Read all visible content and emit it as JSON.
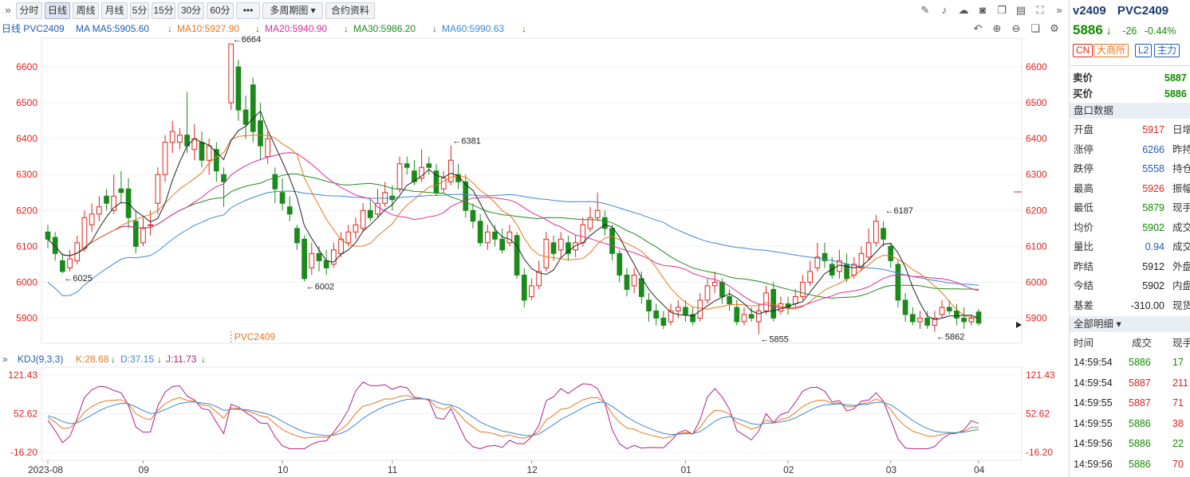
{
  "toolbar": {
    "periods": [
      "分时",
      "日线",
      "周线",
      "月线",
      "5分",
      "15分",
      "30分",
      "60分",
      "•••",
      "多周期图 ▾",
      "合约资料"
    ],
    "active_period": "日线"
  },
  "ma": {
    "label": "日线 PVC2409",
    "ma5": "MA MA5:5905.60",
    "ma10": "MA10:5927.90",
    "ma20": "MA20:5940.90",
    "ma30": "MA30:5986.20",
    "ma60": "MA60:5990.63",
    "colors": {
      "ma5": "#222222",
      "ma10": "#e8761d",
      "ma20": "#e02aa2",
      "ma30": "#1f8a1f",
      "ma60": "#3a87d8"
    }
  },
  "price_axis": {
    "ticks": [
      "6600",
      "6500",
      "6400",
      "6300",
      "6200",
      "6100",
      "6000",
      "5900"
    ]
  },
  "annotations": {
    "high": "6664",
    "p6381": "6381",
    "p6187": "6187",
    "low1": "6025",
    "low2": "6002",
    "low3": "5855",
    "low4": "5862",
    "contract": "PVC2409"
  },
  "kdj": {
    "label": "KDJ(9,3,3)",
    "k": "K:28.68",
    "d": "D:37.15",
    "j": "J:11.73",
    "ticks": [
      "121.43",
      "52.62",
      "-16.20"
    ]
  },
  "x_axis": [
    "2023-08",
    "09",
    "10",
    "11",
    "12",
    "01",
    "02",
    "03",
    "04"
  ],
  "panel": {
    "code": "v2409",
    "name": "PVC2409",
    "price": "5886",
    "change": "-26",
    "change_pct": "-0.44%",
    "tags": [
      "CN",
      "大商所",
      "L2",
      "主力"
    ],
    "ask_label": "卖价",
    "ask": "5887",
    "bid_label": "买价",
    "bid": "5886",
    "stats_title": "盘口数据",
    "stats": [
      {
        "label": "开盘",
        "value": "5917",
        "label2": "日增"
      },
      {
        "label": "涨停",
        "value": "6266",
        "label2": "昨持"
      },
      {
        "label": "跌停",
        "value": "5558",
        "label2": "持仓"
      },
      {
        "label": "最高",
        "value": "5926",
        "label2": "振幅"
      },
      {
        "label": "最低",
        "value": "5879",
        "label2": "现手"
      },
      {
        "label": "均价",
        "value": "5902",
        "label2": "成交"
      },
      {
        "label": "量比",
        "value": "0.94",
        "label2": "成交"
      },
      {
        "label": "昨结",
        "value": "5912",
        "label2": "外盘"
      },
      {
        "label": "今结",
        "value": "5902",
        "label2": "内盘"
      },
      {
        "label": "基差",
        "value": "-310.00",
        "label2": "现货"
      }
    ],
    "ticks_title": "全部明细 ▾",
    "ticks_headers": [
      "时间",
      "成交",
      "现手"
    ],
    "ticks": [
      {
        "time": "14:59:54",
        "price": "5886",
        "vol": "17"
      },
      {
        "time": "14:59:54",
        "price": "5887",
        "vol": "211"
      },
      {
        "time": "14:59:55",
        "price": "5887",
        "vol": "71"
      },
      {
        "time": "14:59:55",
        "price": "5886",
        "vol": "38"
      },
      {
        "time": "14:59:56",
        "price": "5886",
        "vol": "22"
      },
      {
        "time": "14:59:56",
        "price": "5886",
        "vol": "70"
      }
    ]
  },
  "chart_data": {
    "type": "candlestick",
    "title": "PVC2409",
    "price_range": [
      5830,
      6680
    ],
    "candles": [
      [
        6140,
        6120,
        6160,
        6095
      ],
      [
        6125,
        6080,
        6140,
        6060
      ],
      [
        6060,
        6030,
        6080,
        6025
      ],
      [
        6040,
        6065,
        6090,
        6030
      ],
      [
        6060,
        6110,
        6130,
        6050
      ],
      [
        6095,
        6180,
        6200,
        6085
      ],
      [
        6160,
        6190,
        6220,
        6140
      ],
      [
        6190,
        6210,
        6240,
        6170
      ],
      [
        6240,
        6220,
        6260,
        6200
      ],
      [
        6200,
        6240,
        6300,
        6190
      ],
      [
        6260,
        6250,
        6310,
        6220
      ],
      [
        6260,
        6180,
        6290,
        6150
      ],
      [
        6170,
        6100,
        6200,
        6080
      ],
      [
        6110,
        6150,
        6180,
        6100
      ],
      [
        6160,
        6160,
        6200,
        6130
      ],
      [
        6220,
        6300,
        6320,
        6190
      ],
      [
        6300,
        6390,
        6410,
        6280
      ],
      [
        6390,
        6420,
        6450,
        6360
      ],
      [
        6390,
        6410,
        6430,
        6370
      ],
      [
        6410,
        6380,
        6530,
        6360
      ],
      [
        6370,
        6400,
        6440,
        6340
      ],
      [
        6390,
        6340,
        6420,
        6320
      ],
      [
        6340,
        6380,
        6400,
        6300
      ],
      [
        6370,
        6310,
        6390,
        6280
      ],
      [
        6300,
        6280,
        6320,
        6210
      ],
      [
        6500,
        6664,
        6664,
        6480
      ],
      [
        6600,
        6480,
        6620,
        6450
      ],
      [
        6480,
        6440,
        6520,
        6400
      ],
      [
        6550,
        6420,
        6570,
        6390
      ],
      [
        6450,
        6380,
        6500,
        6340
      ],
      [
        6350,
        6400,
        6420,
        6330
      ],
      [
        6300,
        6260,
        6320,
        6220
      ],
      [
        6250,
        6220,
        6290,
        6200
      ],
      [
        6210,
        6190,
        6240,
        6170
      ],
      [
        6150,
        6110,
        6160,
        6090
      ],
      [
        6120,
        6010,
        6130,
        6002
      ],
      [
        6040,
        6080,
        6110,
        6020
      ],
      [
        6080,
        6060,
        6100,
        6030
      ],
      [
        6060,
        6040,
        6090,
        6020
      ],
      [
        6050,
        6090,
        6110,
        6040
      ],
      [
        6080,
        6120,
        6140,
        6070
      ],
      [
        6110,
        6140,
        6160,
        6100
      ],
      [
        6140,
        6160,
        6180,
        6120
      ],
      [
        6150,
        6200,
        6220,
        6140
      ],
      [
        6200,
        6180,
        6230,
        6170
      ],
      [
        6190,
        6220,
        6260,
        6180
      ],
      [
        6220,
        6250,
        6280,
        6210
      ],
      [
        6240,
        6230,
        6270,
        6200
      ],
      [
        6260,
        6330,
        6350,
        6250
      ],
      [
        6330,
        6320,
        6350,
        6300
      ],
      [
        6310,
        6280,
        6340,
        6270
      ],
      [
        6290,
        6320,
        6370,
        6280
      ],
      [
        6330,
        6320,
        6350,
        6300
      ],
      [
        6310,
        6250,
        6330,
        6240
      ],
      [
        6260,
        6290,
        6310,
        6250
      ],
      [
        6280,
        6340,
        6381,
        6270
      ],
      [
        6300,
        6280,
        6330,
        6260
      ],
      [
        6280,
        6200,
        6300,
        6180
      ],
      [
        6200,
        6170,
        6220,
        6150
      ],
      [
        6170,
        6110,
        6190,
        6100
      ],
      [
        6110,
        6140,
        6160,
        6090
      ],
      [
        6140,
        6120,
        6160,
        6100
      ],
      [
        6120,
        6090,
        6150,
        6080
      ],
      [
        6110,
        6140,
        6160,
        6100
      ],
      [
        6130,
        6020,
        6140,
        6010
      ],
      [
        6020,
        5950,
        6040,
        5930
      ],
      [
        5960,
        5990,
        6010,
        5950
      ],
      [
        5990,
        6030,
        6060,
        5980
      ],
      [
        6040,
        6120,
        6140,
        6030
      ],
      [
        6110,
        6080,
        6130,
        6060
      ],
      [
        6090,
        6120,
        6140,
        6070
      ],
      [
        6110,
        6080,
        6130,
        6060
      ],
      [
        6090,
        6110,
        6130,
        6070
      ],
      [
        6110,
        6160,
        6180,
        6100
      ],
      [
        6150,
        6180,
        6210,
        6140
      ],
      [
        6180,
        6200,
        6250,
        6170
      ],
      [
        6180,
        6150,
        6200,
        6130
      ],
      [
        6150,
        6080,
        6160,
        6060
      ],
      [
        6080,
        6020,
        6090,
        6000
      ],
      [
        6020,
        5980,
        6040,
        5960
      ],
      [
        5990,
        6020,
        6040,
        5970
      ],
      [
        6010,
        5960,
        6030,
        5940
      ],
      [
        5950,
        5920,
        5970,
        5890
      ],
      [
        5920,
        5900,
        5940,
        5880
      ],
      [
        5900,
        5880,
        5920,
        5870
      ],
      [
        5890,
        5920,
        5940,
        5880
      ],
      [
        5920,
        5930,
        5950,
        5900
      ],
      [
        5930,
        5910,
        5950,
        5890
      ],
      [
        5910,
        5890,
        5930,
        5880
      ],
      [
        5900,
        5950,
        5970,
        5890
      ],
      [
        5950,
        5990,
        6010,
        5940
      ],
      [
        5990,
        6000,
        6030,
        5970
      ],
      [
        6000,
        5960,
        6010,
        5940
      ],
      [
        5960,
        5940,
        5980,
        5920
      ],
      [
        5930,
        5890,
        5950,
        5880
      ],
      [
        5890,
        5910,
        5930,
        5880
      ],
      [
        5910,
        5900,
        5930,
        5890
      ],
      [
        5890,
        5920,
        5940,
        5855
      ],
      [
        5920,
        5970,
        5990,
        5910
      ],
      [
        5980,
        5900,
        6000,
        5890
      ],
      [
        5920,
        5940,
        5960,
        5910
      ],
      [
        5940,
        5930,
        5960,
        5910
      ],
      [
        5940,
        5960,
        5980,
        5930
      ],
      [
        5960,
        6000,
        6020,
        5950
      ],
      [
        6000,
        6030,
        6060,
        5990
      ],
      [
        6040,
        6070,
        6110,
        6030
      ],
      [
        6080,
        6060,
        6110,
        6040
      ],
      [
        6050,
        6020,
        6070,
        6010
      ],
      [
        6030,
        6060,
        6090,
        6010
      ],
      [
        6050,
        6010,
        6080,
        6000
      ],
      [
        6020,
        6050,
        6070,
        6010
      ],
      [
        6040,
        6080,
        6100,
        6030
      ],
      [
        6070,
        6110,
        6150,
        6060
      ],
      [
        6110,
        6170,
        6187,
        6100
      ],
      [
        6150,
        6120,
        6170,
        6100
      ],
      [
        6100,
        6060,
        6110,
        6040
      ],
      [
        6050,
        5950,
        6060,
        5930
      ],
      [
        5950,
        5910,
        5970,
        5890
      ],
      [
        5910,
        5890,
        5930,
        5880
      ],
      [
        5890,
        5900,
        5920,
        5870
      ],
      [
        5900,
        5880,
        5920,
        5870
      ],
      [
        5880,
        5900,
        5920,
        5862
      ],
      [
        5910,
        5930,
        5950,
        5900
      ],
      [
        5930,
        5920,
        5950,
        5910
      ],
      [
        5920,
        5900,
        5940,
        5880
      ],
      [
        5900,
        5890,
        5930,
        5870
      ],
      [
        5890,
        5900,
        5910,
        5880
      ],
      [
        5917,
        5886,
        5926,
        5879
      ]
    ],
    "ma5_last": 5905.6,
    "ma10_last": 5927.9,
    "ma20_last": 5940.9,
    "ma30_last": 5986.2,
    "ma60_last": 5990.63,
    "kdj_range": [
      -16.2,
      121.43
    ],
    "kdj_last": {
      "K": 28.68,
      "D": 37.15,
      "J": 11.73
    }
  }
}
